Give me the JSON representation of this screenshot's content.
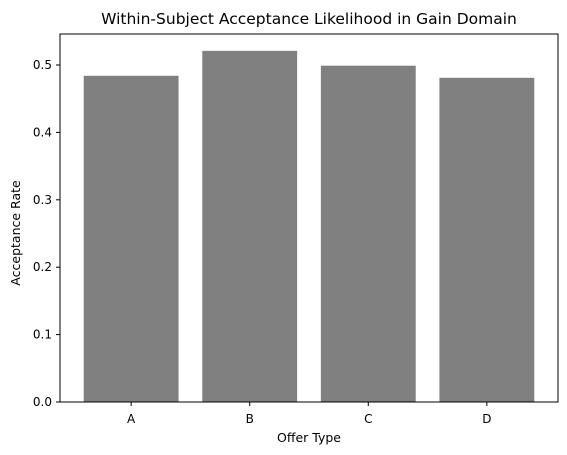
{
  "chart_data": {
    "type": "bar",
    "title": "Within-Subject Acceptance Likelihood in Gain Domain",
    "xlabel": "Offer Type",
    "ylabel": "Acceptance Rate",
    "categories": [
      "A",
      "B",
      "C",
      "D"
    ],
    "values": [
      0.484,
      0.521,
      0.499,
      0.481
    ],
    "ylim": [
      0,
      0.546
    ],
    "yticks": [
      0.0,
      0.1,
      0.2,
      0.3,
      0.4,
      0.5
    ],
    "ytick_labels": [
      "0.0",
      "0.1",
      "0.2",
      "0.3",
      "0.4",
      "0.5"
    ],
    "grid": false,
    "legend": "none",
    "bar_color": "#808080"
  }
}
